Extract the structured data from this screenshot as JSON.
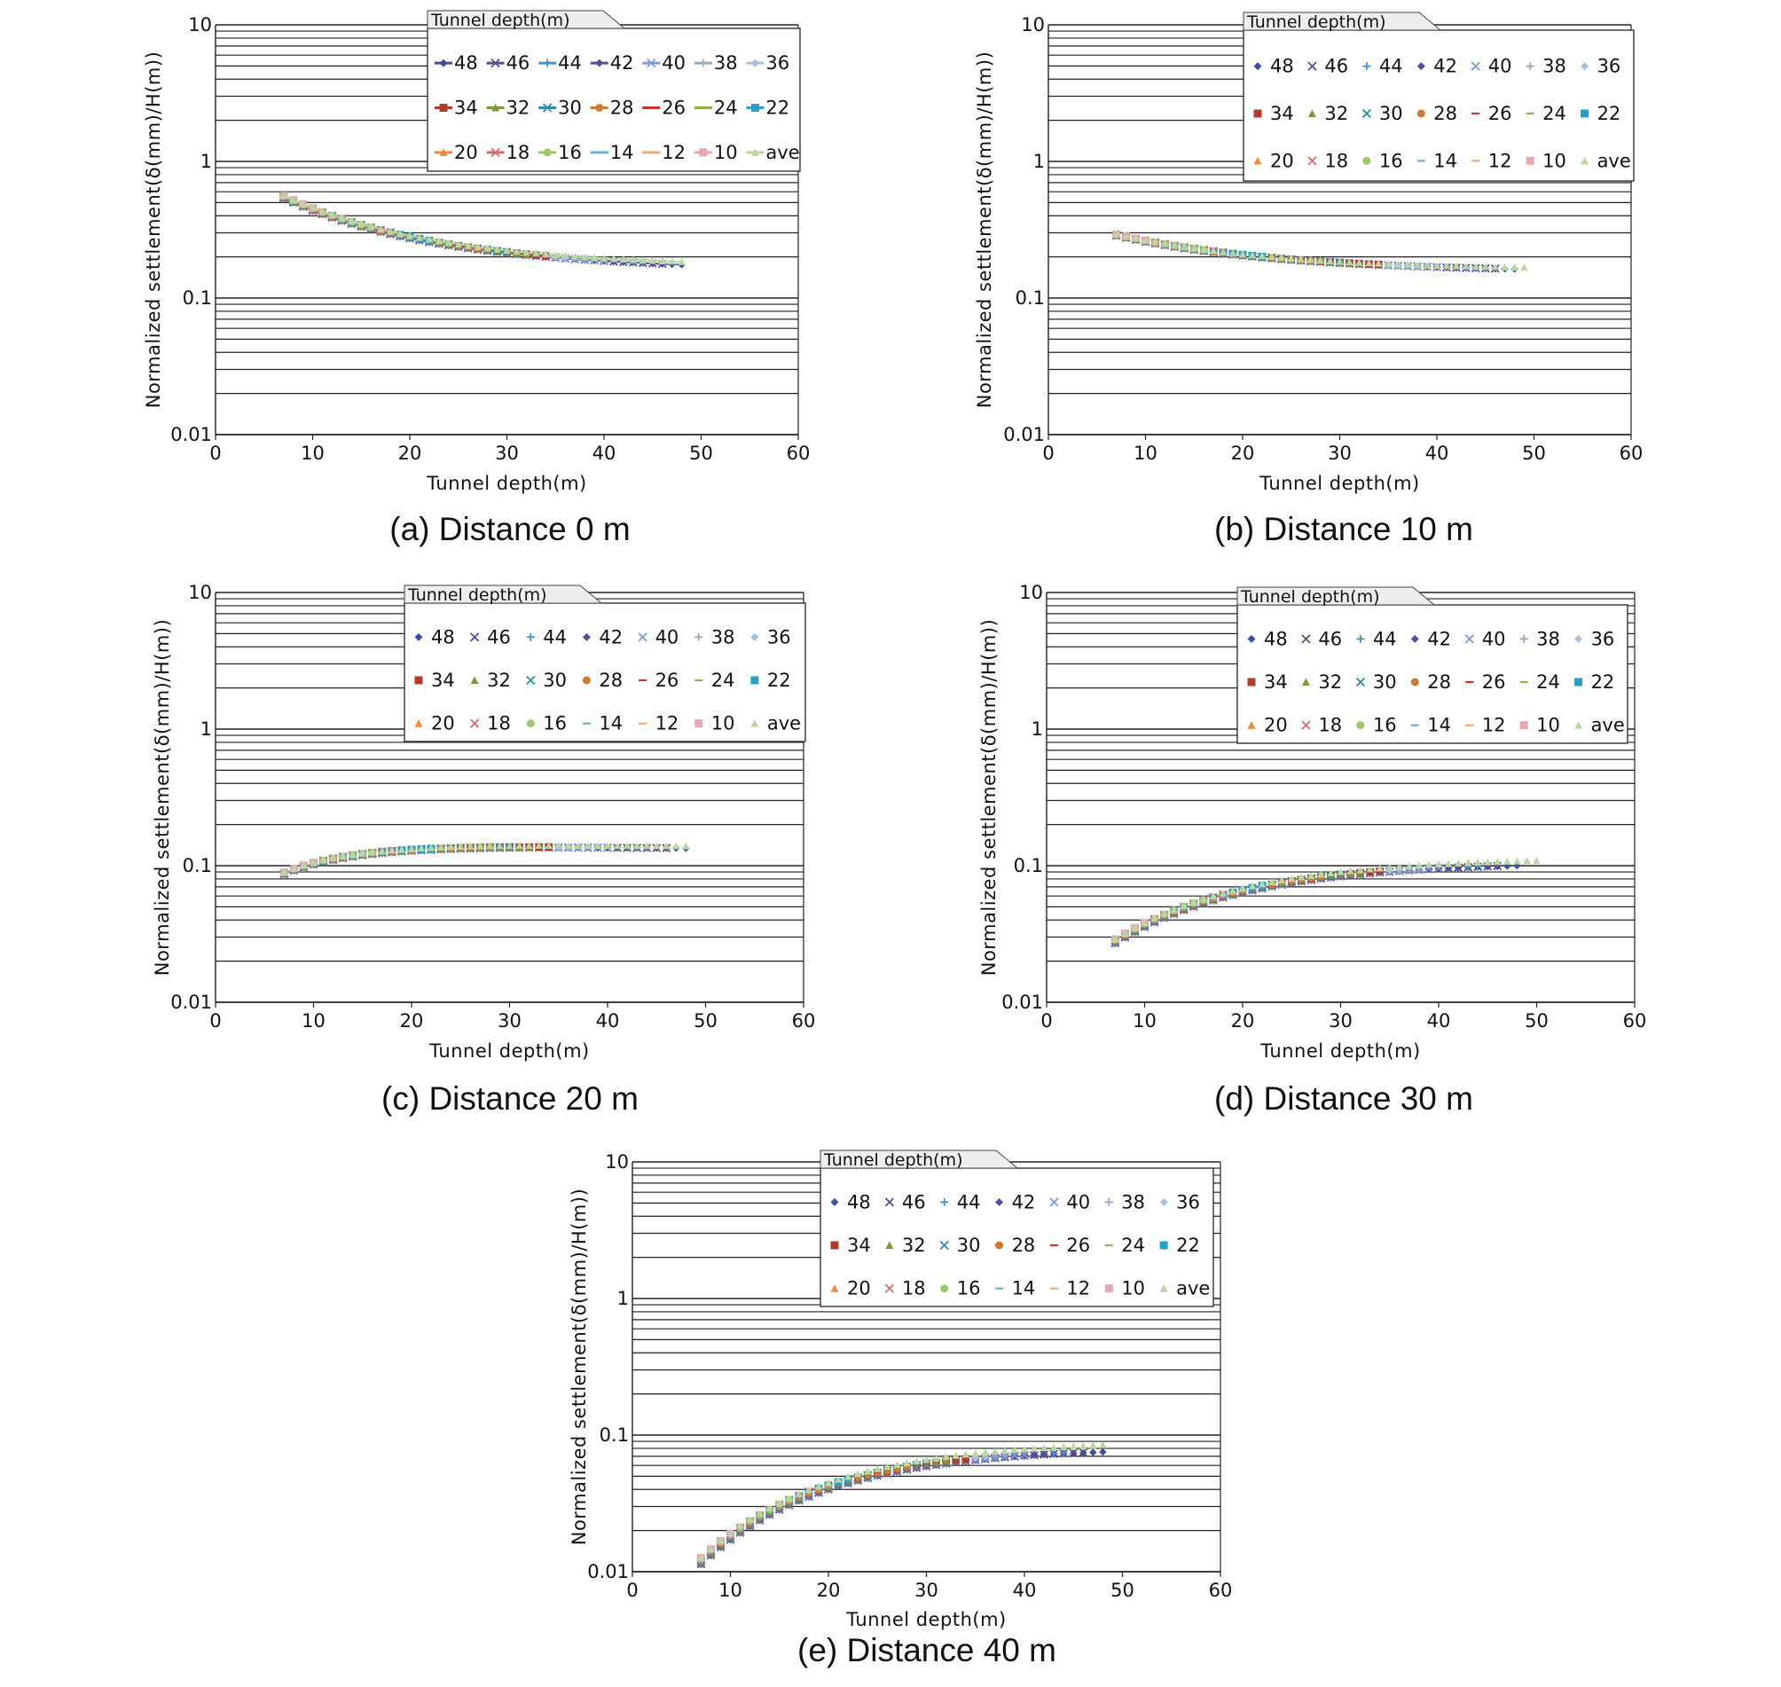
{
  "figure": {
    "captions": [
      "(a) Distance 0 m",
      "(b) Distance 10 m",
      "(c) Distance 20 m",
      "(d) Distance 30 m",
      "(e) Distance 40 m"
    ]
  },
  "legend": {
    "title": "Tunnel depth(m)",
    "entries": [
      "48",
      "46",
      "44",
      "42",
      "40",
      "38",
      "36",
      "34",
      "32",
      "30",
      "28",
      "26",
      "24",
      "22",
      "20",
      "18",
      "16",
      "14",
      "12",
      "10",
      "ave"
    ]
  },
  "series_colors": [
    "#3b4f9e",
    "#5e4a8c",
    "#4a90c8",
    "#5a4aa0",
    "#7a9bd6",
    "#9aa6c8",
    "#a8bfe0",
    "#b03a2e",
    "#7a9a3a",
    "#2f8aa8",
    "#d07a30",
    "#c0392b",
    "#8ab34a",
    "#2a9fc6",
    "#f08a3c",
    "#d46a6a",
    "#9cc86a",
    "#6ab0d8",
    "#f4a870",
    "#e8a8b0",
    "#b8d8a0"
  ],
  "series_markers": [
    "diamond",
    "x",
    "plus",
    "diamond",
    "x",
    "plus",
    "diamond",
    "square",
    "triangle",
    "x",
    "circle",
    "dash",
    "dash",
    "square",
    "triangle",
    "x",
    "circle",
    "dash",
    "dash",
    "square",
    "triangle"
  ],
  "chart_data": [
    {
      "type": "scatter",
      "title": "(a) Distance 0 m",
      "xlabel": "Tunnel depth(m)",
      "ylabel": "Normalized settlement(δ(mm)/H(m))",
      "xlim": [
        0,
        60
      ],
      "ylim": [
        0.01,
        10
      ],
      "yscale": "log",
      "xticks": [
        "0",
        "10",
        "20",
        "30",
        "40",
        "50",
        "60"
      ],
      "yticks": [
        "0.01",
        "0.1",
        "1",
        "10"
      ],
      "grid": "horizontal",
      "legend_position": "top-right",
      "legend_style": "line-marker",
      "trend": {
        "y_start": 0.55,
        "y_end": 0.18,
        "x_start": 7,
        "x_end": 48,
        "shape": "decreasing",
        "spread": 0.05
      }
    },
    {
      "type": "scatter",
      "title": "(b) Distance 10 m",
      "xlabel": "Tunnel depth(m)",
      "ylabel": "Normalized settlement(δ(mm)/H(m))",
      "xlim": [
        0,
        60
      ],
      "ylim": [
        0.01,
        10
      ],
      "yscale": "log",
      "xticks": [
        "0",
        "10",
        "20",
        "30",
        "40",
        "50",
        "60"
      ],
      "yticks": [
        "0.01",
        "0.1",
        "1",
        "10"
      ],
      "grid": "horizontal",
      "legend_position": "top-right",
      "legend_style": "marker",
      "trend": {
        "y_start": 0.29,
        "y_end": 0.165,
        "x_start": 7,
        "x_end": 49,
        "shape": "decreasing",
        "spread": 0.03
      }
    },
    {
      "type": "scatter",
      "title": "(c) Distance 20 m",
      "xlabel": "Tunnel depth(m)",
      "ylabel": "Normalized settlement(δ(mm)/H(m))",
      "xlim": [
        0,
        60
      ],
      "ylim": [
        0.01,
        10
      ],
      "yscale": "log",
      "xticks": [
        "0",
        "10",
        "20",
        "30",
        "40",
        "50",
        "60"
      ],
      "yticks": [
        "0.01",
        "0.1",
        "1",
        "10"
      ],
      "grid": "horizontal",
      "legend_position": "top-right",
      "legend_style": "marker",
      "trend": {
        "y_start": 0.088,
        "y_end": 0.13,
        "x_start": 7,
        "x_end": 48,
        "shape": "plateau",
        "peak": 0.14,
        "spread": 0.04
      }
    },
    {
      "type": "scatter",
      "title": "(d) Distance 30 m",
      "xlabel": "Tunnel depth(m)",
      "ylabel": "Normalized settlement(δ(mm)/H(m))",
      "xlim": [
        0,
        60
      ],
      "ylim": [
        0.01,
        10
      ],
      "yscale": "log",
      "xticks": [
        "0",
        "10",
        "20",
        "30",
        "40",
        "50",
        "60"
      ],
      "yticks": [
        "0.01",
        "0.1",
        "1",
        "10"
      ],
      "grid": "horizontal",
      "legend_position": "top-right",
      "legend_style": "marker",
      "trend": {
        "y_start": 0.028,
        "y_end": 0.105,
        "x_start": 7,
        "x_end": 50,
        "shape": "increasing",
        "spread": 0.08
      }
    },
    {
      "type": "scatter",
      "title": "(e) Distance 40 m",
      "xlabel": "Tunnel depth(m)",
      "ylabel": "Normalized settlement(δ(mm)/H(m))",
      "xlim": [
        0,
        60
      ],
      "ylim": [
        0.01,
        10
      ],
      "yscale": "log",
      "xticks": [
        "0",
        "10",
        "20",
        "30",
        "40",
        "50",
        "60"
      ],
      "yticks": [
        "0.01",
        "0.1",
        "1",
        "10"
      ],
      "grid": "horizontal",
      "legend_position": "top-right",
      "legend_style": "marker",
      "trend": {
        "y_start": 0.012,
        "y_end": 0.08,
        "x_start": 7,
        "x_end": 48,
        "shape": "increasing",
        "spread": 0.12
      }
    }
  ]
}
